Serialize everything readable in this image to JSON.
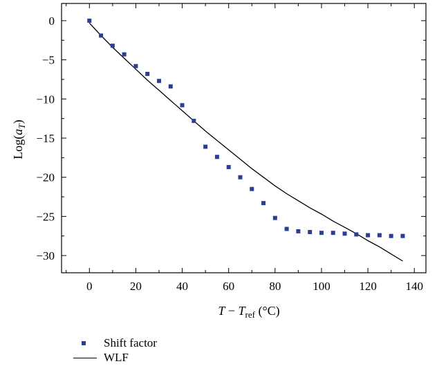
{
  "chart_data": {
    "type": "scatter",
    "title": "",
    "xlabel": {
      "main": "T",
      "op": " − ",
      "sym": "T",
      "sub": "ref",
      "unit": " (°C)"
    },
    "ylabel": {
      "pre": "Log(",
      "sym": "a",
      "sub": "T",
      "post": ")"
    },
    "xlim": [
      -12,
      145
    ],
    "ylim": [
      -32.2,
      2.2
    ],
    "xticks": [
      0,
      20,
      40,
      60,
      80,
      100,
      120,
      140
    ],
    "yticks": [
      0,
      -5,
      -10,
      -15,
      -20,
      -25,
      -30
    ],
    "ytick_labels": [
      "0",
      "−5",
      "−10",
      "−15",
      "−20",
      "−25",
      "−30"
    ],
    "grid": false,
    "legend_position": "bottom-left",
    "series": [
      {
        "name": "Shift factor",
        "kind": "scatter",
        "color": "#2b3f91",
        "x": [
          0,
          5,
          10,
          15,
          20,
          25,
          30,
          35,
          40,
          45,
          50,
          55,
          60,
          65,
          70,
          75,
          80,
          85,
          90,
          95,
          100,
          105,
          110,
          115,
          120,
          125,
          130,
          135
        ],
        "y": [
          0,
          -1.9,
          -3.2,
          -4.3,
          -5.8,
          -6.8,
          -7.7,
          -8.4,
          -10.8,
          -12.8,
          -16.1,
          -17.4,
          -18.7,
          -20.0,
          -21.5,
          -23.3,
          -25.2,
          -26.6,
          -26.9,
          -27.0,
          -27.1,
          -27.1,
          -27.2,
          -27.3,
          -27.4,
          -27.4,
          -27.5,
          -27.5
        ]
      },
      {
        "name": "WLF",
        "kind": "line",
        "color": "#000000",
        "x": [
          0,
          5,
          10,
          15,
          20,
          25,
          30,
          35,
          40,
          45,
          50,
          55,
          60,
          65,
          70,
          75,
          80,
          85,
          90,
          95,
          100,
          105,
          110,
          115,
          120,
          125,
          130,
          135
        ],
        "y": [
          -0.3,
          -1.9,
          -3.4,
          -4.8,
          -6.2,
          -7.6,
          -8.9,
          -10.2,
          -11.5,
          -12.8,
          -14.1,
          -15.3,
          -16.5,
          -17.7,
          -18.9,
          -20.0,
          -21.1,
          -22.1,
          -23.0,
          -23.9,
          -24.7,
          -25.6,
          -26.4,
          -27.2,
          -28.1,
          -28.9,
          -29.8,
          -30.7
        ]
      }
    ]
  }
}
